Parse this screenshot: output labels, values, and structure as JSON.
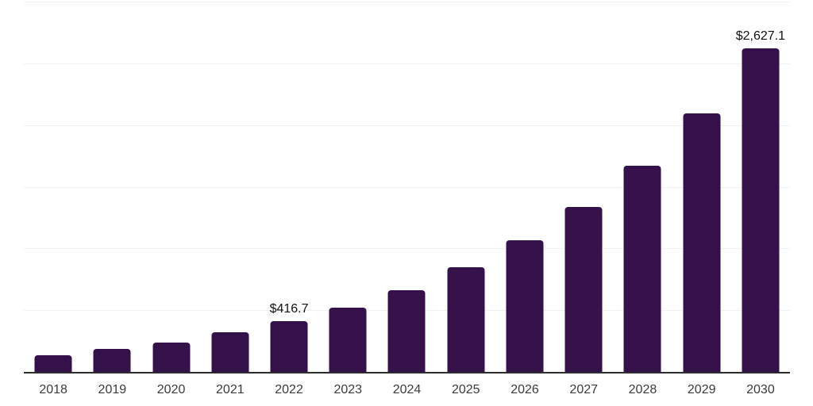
{
  "chart_data": {
    "type": "bar",
    "title": "",
    "xlabel": "",
    "ylabel": "",
    "categories": [
      "2018",
      "2019",
      "2020",
      "2021",
      "2022",
      "2023",
      "2024",
      "2025",
      "2026",
      "2027",
      "2028",
      "2029",
      "2030"
    ],
    "values": [
      143,
      193,
      244,
      327,
      416.7,
      530,
      668,
      856,
      1070,
      1340,
      1678,
      2100,
      2627.1
    ],
    "data_labels": [
      "",
      "",
      "",
      "",
      "$416.7",
      "",
      "",
      "",
      "",
      "",
      "",
      "",
      "$2,627.1"
    ],
    "ylim": [
      0,
      3000
    ],
    "gridline_interval": 500,
    "grid": true,
    "legend": false,
    "colors": {
      "bar": "#351149",
      "axis_line": "#2d2d2d",
      "gridline": "#f2f2f2",
      "tick_label": "#3b3b3b",
      "data_label": "#111111",
      "background": "#ffffff"
    }
  }
}
